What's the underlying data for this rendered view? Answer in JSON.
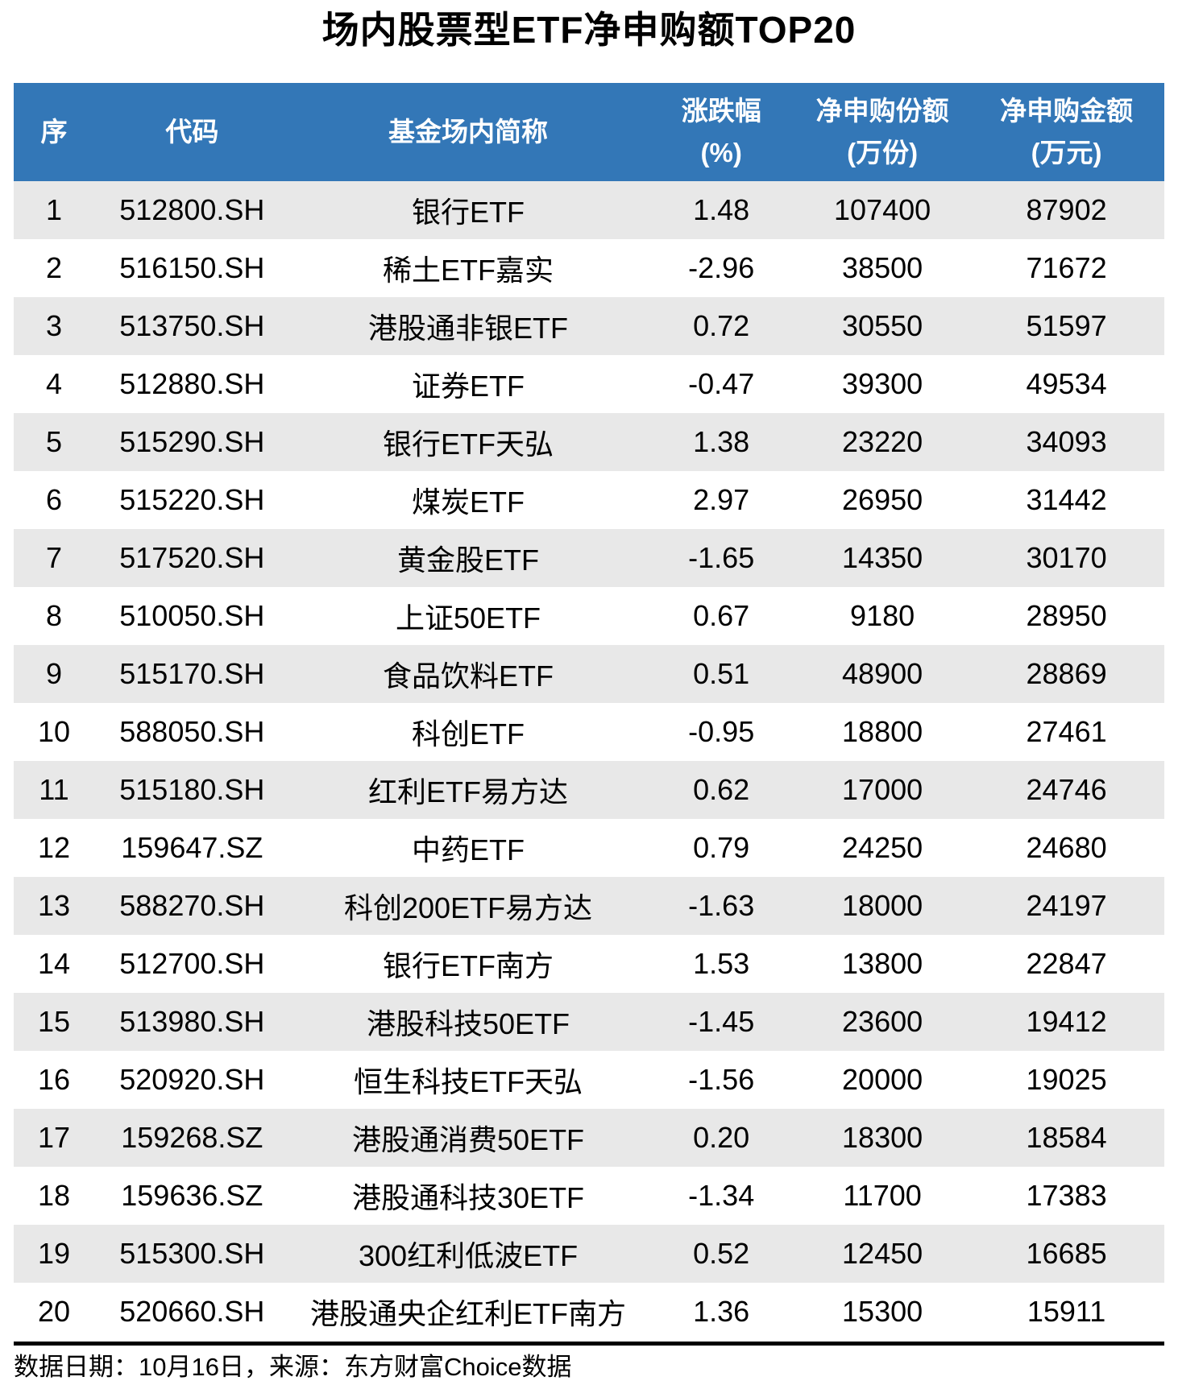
{
  "title": "场内股票型ETF净申购额TOP20",
  "chart_data": {
    "type": "table",
    "title": "场内股票型ETF净申购额TOP20",
    "columns": [
      {
        "line1": "序",
        "line2": ""
      },
      {
        "line1": "代码",
        "line2": ""
      },
      {
        "line1": "基金场内简称",
        "line2": ""
      },
      {
        "line1": "涨跌幅",
        "line2": "(%)"
      },
      {
        "line1": "净申购份额",
        "line2": "(万份)"
      },
      {
        "line1": "净申购金额",
        "line2": "(万元)"
      }
    ],
    "column_full_labels": [
      "序",
      "代码",
      "基金场内简称",
      "涨跌幅(%)",
      "净申购份额(万份)",
      "净申购金额(万元)"
    ],
    "rows": [
      [
        "1",
        "512800.SH",
        "银行ETF",
        "1.48",
        "107400",
        "87902"
      ],
      [
        "2",
        "516150.SH",
        "稀土ETF嘉实",
        "-2.96",
        "38500",
        "71672"
      ],
      [
        "3",
        "513750.SH",
        "港股通非银ETF",
        "0.72",
        "30550",
        "51597"
      ],
      [
        "4",
        "512880.SH",
        "证券ETF",
        "-0.47",
        "39300",
        "49534"
      ],
      [
        "5",
        "515290.SH",
        "银行ETF天弘",
        "1.38",
        "23220",
        "34093"
      ],
      [
        "6",
        "515220.SH",
        "煤炭ETF",
        "2.97",
        "26950",
        "31442"
      ],
      [
        "7",
        "517520.SH",
        "黄金股ETF",
        "-1.65",
        "14350",
        "30170"
      ],
      [
        "8",
        "510050.SH",
        "上证50ETF",
        "0.67",
        "9180",
        "28950"
      ],
      [
        "9",
        "515170.SH",
        "食品饮料ETF",
        "0.51",
        "48900",
        "28869"
      ],
      [
        "10",
        "588050.SH",
        "科创ETF",
        "-0.95",
        "18800",
        "27461"
      ],
      [
        "11",
        "515180.SH",
        "红利ETF易方达",
        "0.62",
        "17000",
        "24746"
      ],
      [
        "12",
        "159647.SZ",
        "中药ETF",
        "0.79",
        "24250",
        "24680"
      ],
      [
        "13",
        "588270.SH",
        "科创200ETF易方达",
        "-1.63",
        "18000",
        "24197"
      ],
      [
        "14",
        "512700.SH",
        "银行ETF南方",
        "1.53",
        "13800",
        "22847"
      ],
      [
        "15",
        "513980.SH",
        "港股科技50ETF",
        "-1.45",
        "23600",
        "19412"
      ],
      [
        "16",
        "520920.SH",
        "恒生科技ETF天弘",
        "-1.56",
        "20000",
        "19025"
      ],
      [
        "17",
        "159268.SZ",
        "港股通消费50ETF",
        "0.20",
        "18300",
        "18584"
      ],
      [
        "18",
        "159636.SZ",
        "港股通科技30ETF",
        "-1.34",
        "11700",
        "17383"
      ],
      [
        "19",
        "515300.SH",
        "300红利低波ETF",
        "0.52",
        "12450",
        "16685"
      ],
      [
        "20",
        "520660.SH",
        "港股通央企红利ETF南方",
        "1.36",
        "15300",
        "15911"
      ]
    ]
  },
  "footer": {
    "note": "数据日期：10月16日，来源：东方财富Choice数据"
  },
  "colors": {
    "header_bg": "#3377B7",
    "header_fg": "#FFFFFF",
    "row_alt_bg": "#E8E8E8",
    "row_bg": "#FFFFFF",
    "text": "#000000",
    "divider": "#000000"
  }
}
